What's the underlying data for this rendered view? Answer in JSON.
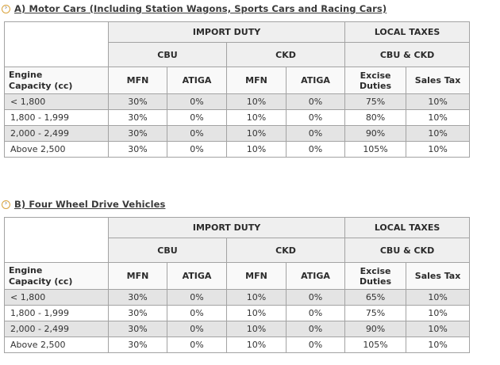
{
  "icons": {
    "bullet_glyph": "›"
  },
  "colors": {
    "border": "#a3a3a3",
    "header_bg": "#efefef",
    "subheader_bg": "#f9f9f9",
    "alt_row_bg": "#e4e4e4",
    "title_color": "#3a3a3a",
    "text_color": "#333333",
    "bullet_ring": "#d9a33c"
  },
  "sections": [
    {
      "title": "A) Motor Cars (Including Station Wagons, Sports Cars and Racing Cars)",
      "table": {
        "import_duty": "IMPORT DUTY",
        "local_taxes": "LOCAL TAXES",
        "cbu": "CBU",
        "ckd": "CKD",
        "cbu_ckd": "CBU & CKD",
        "engine_line1": "Engine",
        "engine_line2": "Capacity (cc)",
        "mfn_cbu": "MFN",
        "atiga_cbu": "ATIGA",
        "mfn_ckd": "MFN",
        "atiga_ckd": "ATIGA",
        "excise_line1": "Excise",
        "excise_line2": "Duties",
        "sales_tax": "Sales Tax",
        "rows": [
          {
            "label": "< 1,800",
            "values": [
              "30%",
              "0%",
              "10%",
              "0%",
              "75%",
              "10%"
            ]
          },
          {
            "label": "1,800 - 1,999",
            "values": [
              "30%",
              "0%",
              "10%",
              "0%",
              "80%",
              "10%"
            ]
          },
          {
            "label": "2,000 - 2,499",
            "values": [
              "30%",
              "0%",
              "10%",
              "0%",
              "90%",
              "10%"
            ]
          },
          {
            "label": "Above 2,500",
            "values": [
              "30%",
              "0%",
              "10%",
              "0%",
              "105%",
              "10%"
            ]
          }
        ]
      }
    },
    {
      "title": "B) Four Wheel Drive Vehicles",
      "table": {
        "import_duty": "IMPORT DUTY",
        "local_taxes": "LOCAL TAXES",
        "cbu": "CBU",
        "ckd": "CKD",
        "cbu_ckd": "CBU & CKD",
        "engine_line1": "Engine",
        "engine_line2": "Capacity (cc)",
        "mfn_cbu": "MFN",
        "atiga_cbu": "ATIGA",
        "mfn_ckd": "MFN",
        "atiga_ckd": "ATIGA",
        "excise_line1": "Excise",
        "excise_line2": "Duties",
        "sales_tax": "Sales Tax",
        "rows": [
          {
            "label": "< 1,800",
            "values": [
              "30%",
              "0%",
              "10%",
              "0%",
              "65%",
              "10%"
            ]
          },
          {
            "label": "1,800 - 1,999",
            "values": [
              "30%",
              "0%",
              "10%",
              "0%",
              "75%",
              "10%"
            ]
          },
          {
            "label": "2,000 - 2,499",
            "values": [
              "30%",
              "0%",
              "10%",
              "0%",
              "90%",
              "10%"
            ]
          },
          {
            "label": "Above 2,500",
            "values": [
              "30%",
              "0%",
              "10%",
              "0%",
              "105%",
              "10%"
            ]
          }
        ]
      }
    }
  ]
}
